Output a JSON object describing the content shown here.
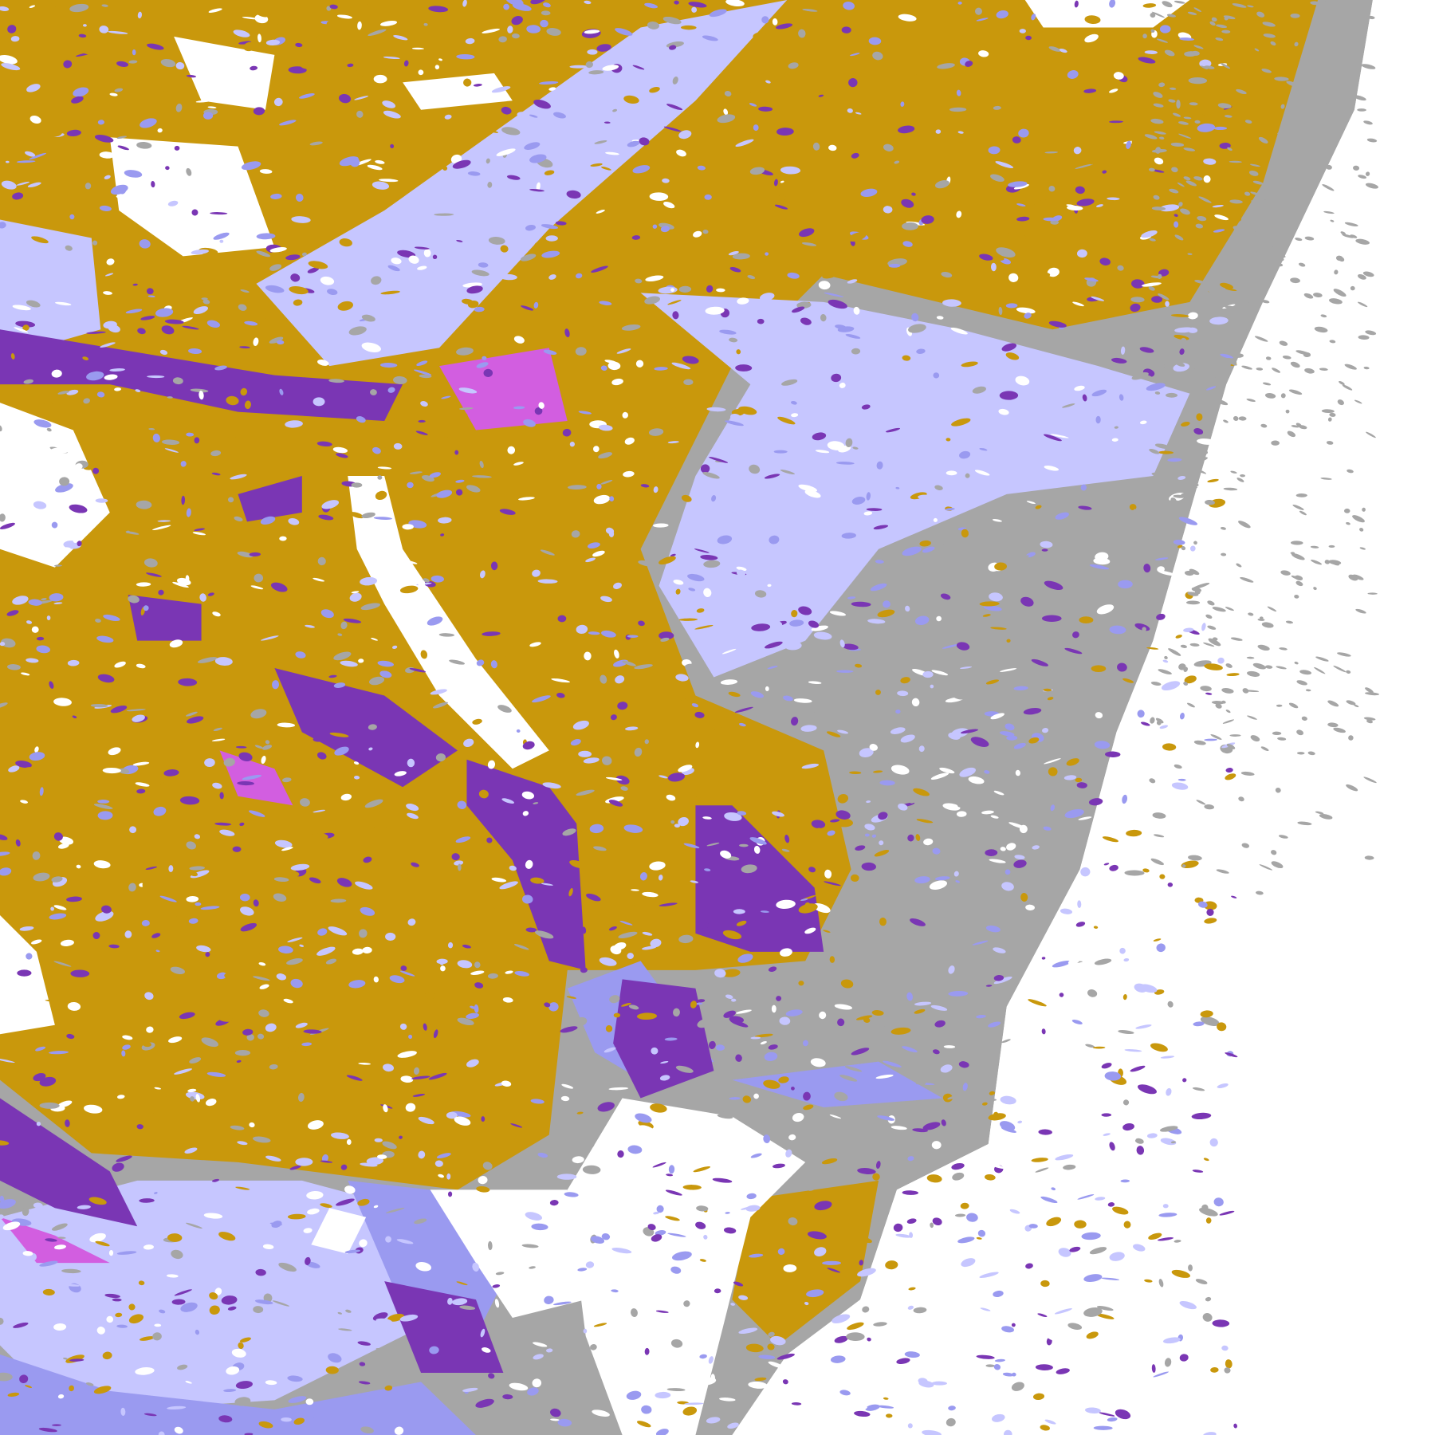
{
  "map": {
    "palette": {
      "background": "#ffffff",
      "gold": "#c9980c",
      "purple": "#7a36b4",
      "magenta": "#d25ee0",
      "lavender": "#c6c6ff",
      "periwinkle": "#9a9af0",
      "gray": "#a6a6a6",
      "pale": "#e6e6ff"
    }
  }
}
